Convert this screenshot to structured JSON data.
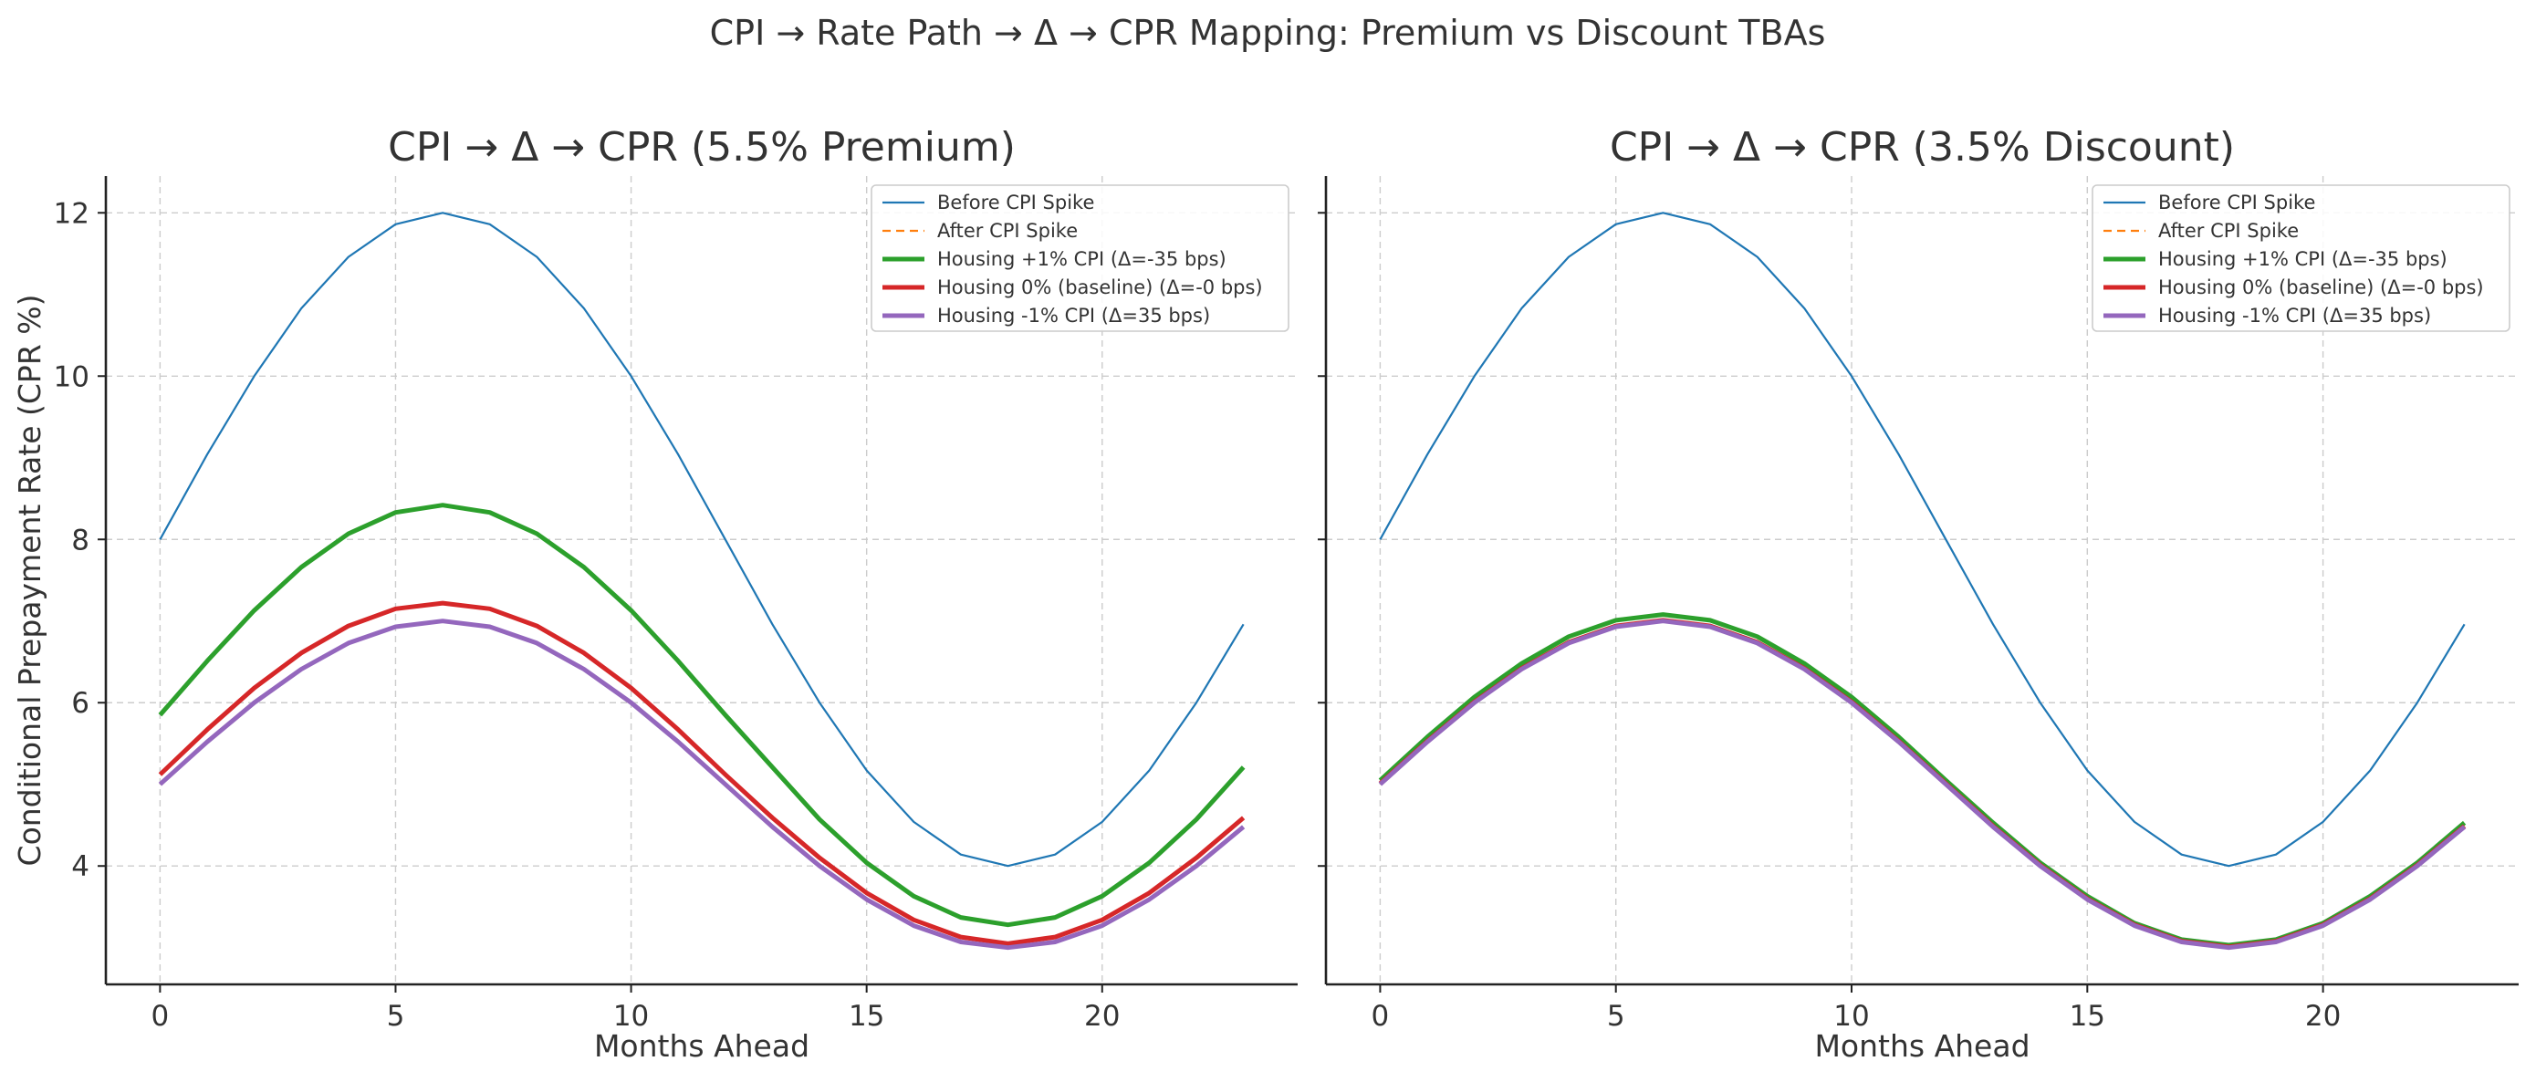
{
  "figure": {
    "suptitle": "CPI → Rate Path → Δ → CPR Mapping: Premium vs Discount TBAs"
  },
  "chart_data": [
    {
      "type": "line",
      "title": "CPI → Δ → CPR (5.5% Premium)",
      "xlabel": "Months Ahead",
      "ylabel": "Conditional Prepayment Rate (CPR %)",
      "xlim": [
        -1.15,
        24.15
      ],
      "ylim": [
        2.55,
        12.45
      ],
      "xticks": [
        0,
        5,
        10,
        15,
        20
      ],
      "yticks": [
        4,
        6,
        8,
        10,
        12
      ],
      "grid": true,
      "legend": "upper-right",
      "x": [
        0,
        1,
        2,
        3,
        4,
        5,
        6,
        7,
        8,
        9,
        10,
        11,
        12,
        13,
        14,
        15,
        16,
        17,
        18,
        19,
        20,
        21,
        22,
        23
      ],
      "series": [
        {
          "name": "Before CPI Spike",
          "color": "#1f77b4",
          "style": "solid",
          "width": 2.2,
          "values": [
            8.0,
            9.04,
            10.0,
            10.83,
            11.46,
            11.86,
            12.0,
            11.86,
            11.46,
            10.83,
            10.0,
            9.04,
            8.0,
            6.96,
            6.0,
            5.17,
            4.54,
            4.14,
            4.0,
            4.14,
            4.54,
            5.17,
            6.0,
            6.96
          ]
        },
        {
          "name": "After CPI Spike",
          "color": "#ff7f0e",
          "style": "dashed",
          "width": 2.2,
          "values": [
            5.0,
            5.52,
            6.0,
            6.41,
            6.73,
            6.93,
            7.0,
            6.93,
            6.73,
            6.41,
            6.0,
            5.52,
            5.0,
            4.48,
            4.0,
            3.59,
            3.27,
            3.07,
            3.0,
            3.07,
            3.27,
            3.59,
            4.0,
            4.48
          ]
        },
        {
          "name": "Housing +1% CPI (Δ=-35 bps)",
          "color": "#2ca02c",
          "style": "solid",
          "width": 5,
          "values": [
            5.85,
            6.51,
            7.13,
            7.66,
            8.07,
            8.33,
            8.42,
            8.33,
            8.07,
            7.66,
            7.13,
            6.51,
            5.85,
            5.21,
            4.57,
            4.04,
            3.63,
            3.37,
            3.28,
            3.37,
            3.63,
            4.04,
            4.57,
            5.21
          ]
        },
        {
          "name": "Housing 0% (baseline) (Δ=-0 bps)",
          "color": "#d62728",
          "style": "solid",
          "width": 5,
          "values": [
            5.12,
            5.67,
            6.18,
            6.61,
            6.94,
            7.15,
            7.22,
            7.15,
            6.94,
            6.61,
            6.18,
            5.67,
            5.12,
            4.59,
            4.1,
            3.67,
            3.34,
            3.13,
            3.05,
            3.13,
            3.34,
            3.67,
            4.1,
            4.59
          ]
        },
        {
          "name": "Housing -1% CPI (Δ=35 bps)",
          "color": "#9467bd",
          "style": "solid",
          "width": 5,
          "values": [
            5.0,
            5.52,
            6.0,
            6.41,
            6.73,
            6.93,
            7.0,
            6.93,
            6.73,
            6.41,
            6.0,
            5.52,
            5.0,
            4.48,
            4.0,
            3.59,
            3.27,
            3.07,
            3.0,
            3.07,
            3.27,
            3.59,
            4.0,
            4.48
          ]
        }
      ]
    },
    {
      "type": "line",
      "title": "CPI → Δ → CPR (3.5% Discount)",
      "xlabel": "Months Ahead",
      "ylabel": "",
      "xlim": [
        -1.15,
        24.15
      ],
      "ylim": [
        2.55,
        12.45
      ],
      "xticks": [
        0,
        5,
        10,
        15,
        20
      ],
      "yticks": [
        4,
        6,
        8,
        10,
        12
      ],
      "grid": true,
      "legend": "upper-right",
      "x": [
        0,
        1,
        2,
        3,
        4,
        5,
        6,
        7,
        8,
        9,
        10,
        11,
        12,
        13,
        14,
        15,
        16,
        17,
        18,
        19,
        20,
        21,
        22,
        23
      ],
      "series": [
        {
          "name": "Before CPI Spike",
          "color": "#1f77b4",
          "style": "solid",
          "width": 2.2,
          "values": [
            8.0,
            9.04,
            10.0,
            10.83,
            11.46,
            11.86,
            12.0,
            11.86,
            11.46,
            10.83,
            10.0,
            9.04,
            8.0,
            6.96,
            6.0,
            5.17,
            4.54,
            4.14,
            4.0,
            4.14,
            4.54,
            5.17,
            6.0,
            6.96
          ]
        },
        {
          "name": "After CPI Spike",
          "color": "#ff7f0e",
          "style": "dashed",
          "width": 2.2,
          "values": [
            5.0,
            5.52,
            6.0,
            6.41,
            6.73,
            6.93,
            7.0,
            6.93,
            6.73,
            6.41,
            6.0,
            5.52,
            5.0,
            4.48,
            4.0,
            3.59,
            3.27,
            3.07,
            3.0,
            3.07,
            3.27,
            3.59,
            4.0,
            4.48
          ]
        },
        {
          "name": "Housing +1% CPI (Δ=-35 bps)",
          "color": "#2ca02c",
          "style": "solid",
          "width": 5,
          "values": [
            5.05,
            5.58,
            6.07,
            6.48,
            6.81,
            7.01,
            7.08,
            7.01,
            6.81,
            6.48,
            6.07,
            5.58,
            5.05,
            4.53,
            4.04,
            3.63,
            3.3,
            3.1,
            3.03,
            3.1,
            3.3,
            3.63,
            4.04,
            4.53
          ]
        },
        {
          "name": "Housing 0% (baseline) (Δ=-0 bps)",
          "color": "#d62728",
          "style": "solid",
          "width": 5,
          "values": [
            5.01,
            5.53,
            6.01,
            6.42,
            6.74,
            6.94,
            7.01,
            6.94,
            6.74,
            6.42,
            6.01,
            5.53,
            5.01,
            4.49,
            4.01,
            3.6,
            3.28,
            3.08,
            3.01,
            3.08,
            3.28,
            3.6,
            4.01,
            4.49
          ]
        },
        {
          "name": "Housing -1% CPI (Δ=35 bps)",
          "color": "#9467bd",
          "style": "solid",
          "width": 5,
          "values": [
            5.0,
            5.52,
            6.0,
            6.41,
            6.73,
            6.93,
            7.0,
            6.93,
            6.73,
            6.41,
            6.0,
            5.52,
            5.0,
            4.48,
            4.0,
            3.59,
            3.27,
            3.07,
            3.0,
            3.07,
            3.27,
            3.59,
            4.0,
            4.48
          ]
        }
      ]
    }
  ]
}
